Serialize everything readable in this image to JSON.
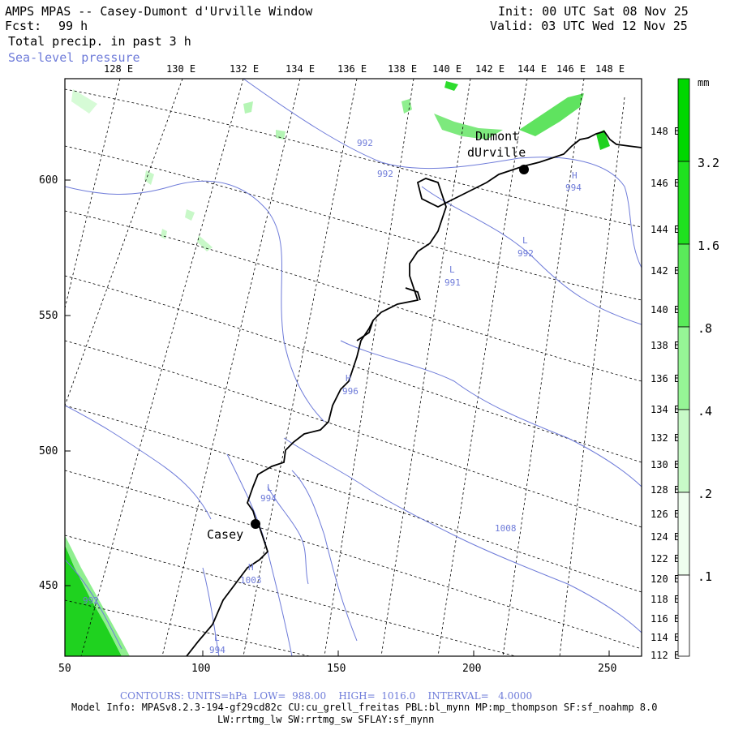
{
  "header": {
    "title": "AMPS MPAS -- Casey-Dumont d'Urville Window",
    "fcst_label": "Fcst:",
    "fcst_value": "99 h",
    "field1": "Total precip. in past 3 h",
    "field2": "Sea-level pressure",
    "init": "Init: 00 UTC Sat 08 Nov 25",
    "valid": "Valid: 03 UTC Wed 12 Nov 25"
  },
  "top_longitudes": [
    "128 E",
    "130 E",
    "132 E",
    "134 E",
    "136 E",
    "138 E",
    "140 E",
    "142 E",
    "144 E",
    "146 E",
    "148 E"
  ],
  "right_longitudes": [
    "148 E",
    "146 E",
    "144 E",
    "142 E",
    "140 E",
    "138 E",
    "136 E",
    "134 E",
    "132 E",
    "130 E",
    "128 E",
    "126 E",
    "124 E",
    "122 E",
    "120 E",
    "118 E",
    "116 E",
    "114 E",
    "112 E"
  ],
  "x_ticks": [
    "50",
    "100",
    "150",
    "200",
    "250"
  ],
  "y_ticks": [
    "600",
    "550",
    "500",
    "450"
  ],
  "places": [
    {
      "name": "Dumont",
      "name2": "dUrville"
    },
    {
      "name": "Casey"
    }
  ],
  "contour_labels": [
    {
      "text": "992"
    },
    {
      "text": "992"
    },
    {
      "text": "H"
    },
    {
      "text": "994"
    },
    {
      "text": "L"
    },
    {
      "text": "992"
    },
    {
      "text": "L"
    },
    {
      "text": "991"
    },
    {
      "text": "H"
    },
    {
      "text": "996"
    },
    {
      "text": "L"
    },
    {
      "text": "994"
    },
    {
      "text": "1008"
    },
    {
      "text": "H"
    },
    {
      "text": "1003"
    },
    {
      "text": "992"
    },
    {
      "text": "L"
    },
    {
      "text": "994"
    }
  ],
  "colorbar": {
    "unit": "mm",
    "labels": [
      "3.2",
      "1.6",
      ".8",
      ".4",
      ".2",
      ".1"
    ],
    "colors": [
      "#00d700",
      "#1fe11f",
      "#5aeb5a",
      "#96f596",
      "#c8fac8",
      "#eefeee"
    ]
  },
  "colors": {
    "contour": "#6e7bd9",
    "precip": "#2ddc2d",
    "grid": "#000000",
    "coast": "#000000"
  },
  "footer": {
    "contours": "CONTOURS: UNITS=hPa  LOW=  988.00    HIGH=  1016.0    INTERVAL=   4.0000",
    "model1": "Model Info: MPASv8.2.3-194-gf29cd82c CU:cu_grell_freitas PBL:bl_mynn MP:mp_thompson SF:sf_noahmp 8.0",
    "model2": "LW:rrtmg_lw SW:rrtmg_sw SFLAY:sf_mynn"
  }
}
